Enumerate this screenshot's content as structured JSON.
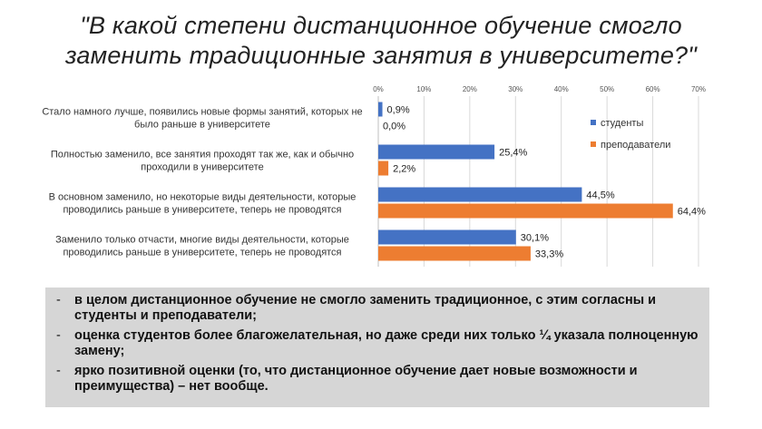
{
  "title": "\"В какой степени дистанционное обучение смогло заменить традиционные занятия в университете?\"",
  "chart_data": {
    "type": "bar",
    "orientation": "horizontal",
    "categories": [
      "Стало намного лучше, появились новые формы занятий, которых не было раньше в университете",
      "Полностью заменило, все занятия проходят так же, как и обычно проходили в университете",
      "В основном заменило, но некоторые виды деятельности, которые проводились раньше в университете, теперь не проводятся",
      "Заменило только отчасти, многие виды деятельности, которые проводились раньше в университете, теперь не проводятся"
    ],
    "series": [
      {
        "name": "студенты",
        "color": "#4472c4",
        "values": [
          0.9,
          25.4,
          44.5,
          30.1
        ],
        "labels": [
          "0,9%",
          "25,4%",
          "44,5%",
          "30,1%"
        ]
      },
      {
        "name": "преподаватели",
        "color": "#ed7d31",
        "values": [
          0.0,
          2.2,
          64.4,
          33.3
        ],
        "labels": [
          "0,0%",
          "2,2%",
          "64,4%",
          "33,3%"
        ]
      }
    ],
    "xlim": [
      0,
      70
    ],
    "ticks": [
      "0%",
      "10%",
      "20%",
      "30%",
      "40%",
      "50%",
      "60%",
      "70%"
    ],
    "tick_values": [
      0,
      10,
      20,
      30,
      40,
      50,
      60,
      70
    ],
    "legend_position": "right",
    "grid": true
  },
  "notes": [
    "в целом дистанционное обучение не смогло заменить традиционное, с этим согласны и студенты и преподаватели;",
    "оценка студентов более благожелательная, но даже среди них только ¼ указала полноценную замену;",
    "ярко позитивной оценки (то, что дистанционное обучение дает новые возможности и преимущества) – нет вообще."
  ],
  "note_marker": "-"
}
